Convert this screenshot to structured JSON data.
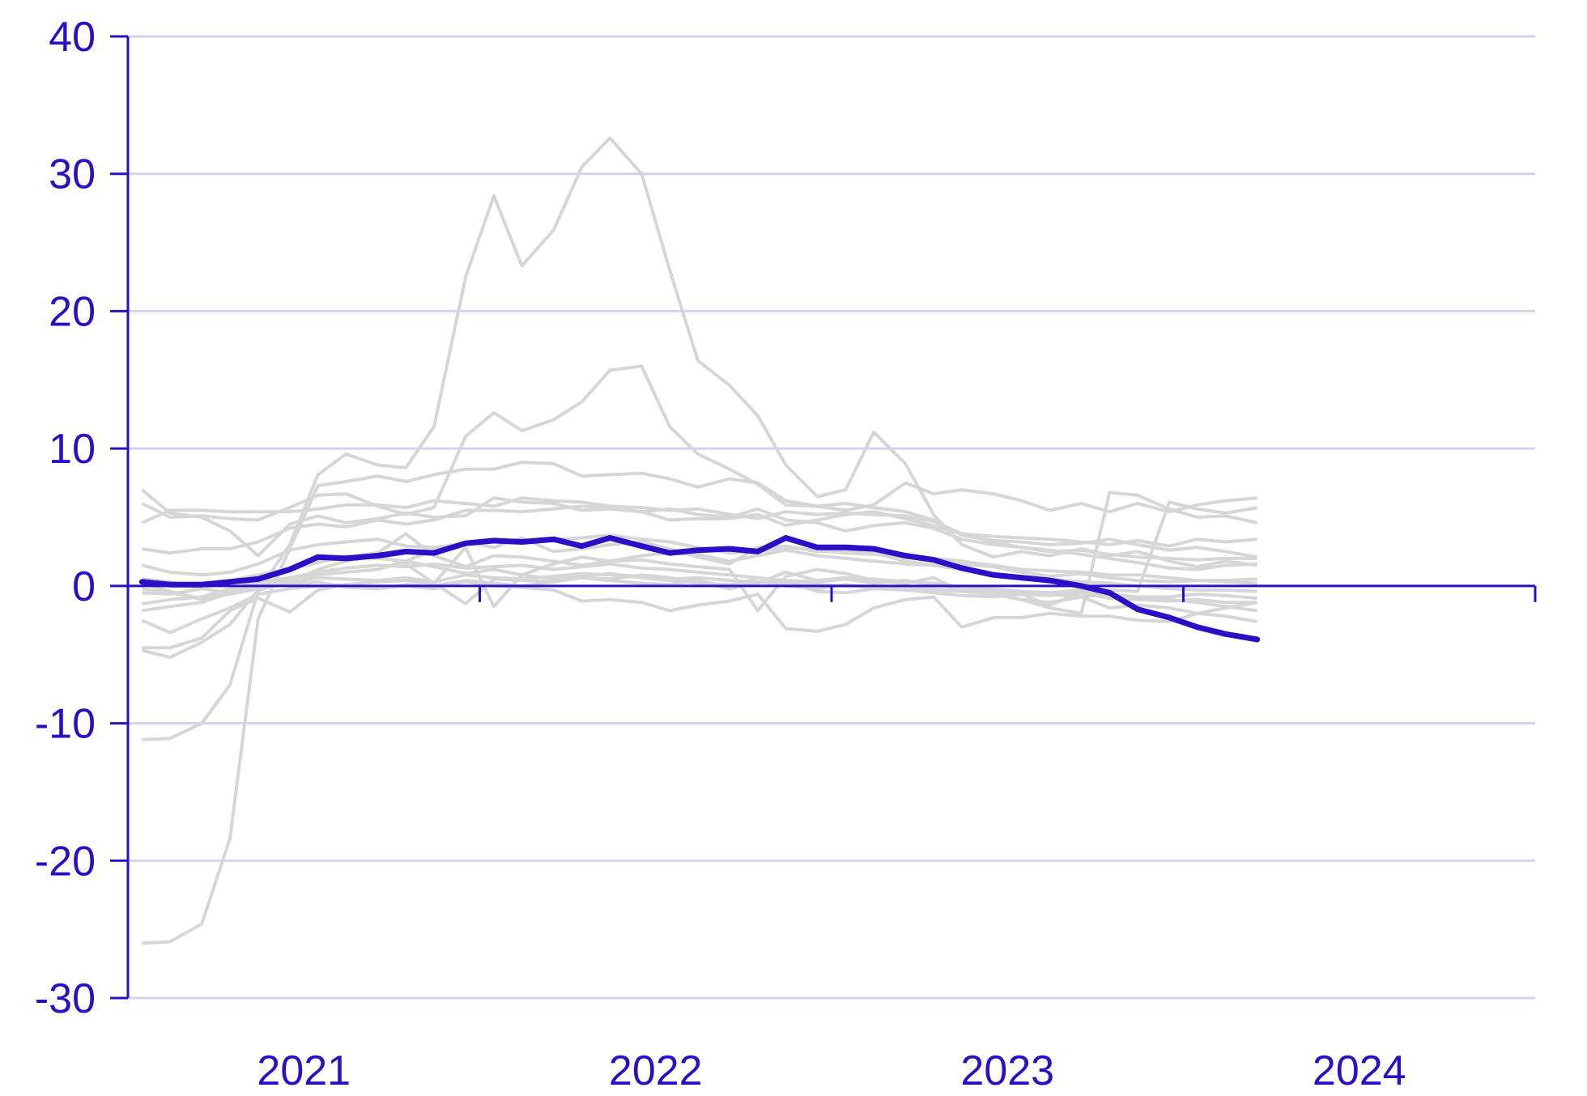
{
  "colors": {
    "accent": "#2a0fc6",
    "grid": "#d3d1ef",
    "background_series": "#d6d6d6"
  },
  "chart_data": {
    "type": "line",
    "title": "",
    "xlabel": "",
    "ylabel": "",
    "ylim": [
      -30,
      40
    ],
    "xlim": [
      2020.5,
      2024.5
    ],
    "grid": "horizontal",
    "y_ticks": [
      40,
      30,
      20,
      10,
      0,
      -10,
      -20,
      -30
    ],
    "y_tick_labels": [
      "40",
      "30",
      "20",
      "10",
      "0",
      "-10",
      "-20",
      "-30"
    ],
    "x_tick_labels": [
      "2021",
      "2022",
      "2023",
      "2024"
    ],
    "x_tick_label_positions": [
      2021.0,
      2022.0,
      2023.0,
      2024.0
    ],
    "x_ticks": [
      2021.5,
      2022.5,
      2023.5,
      2024.5
    ],
    "x": [
      2020.54,
      2020.62,
      2020.71,
      2020.79,
      2020.87,
      2020.96,
      2021.04,
      2021.12,
      2021.21,
      2021.29,
      2021.37,
      2021.46,
      2021.54,
      2021.62,
      2021.71,
      2021.79,
      2021.87,
      2021.96,
      2022.04,
      2022.12,
      2022.21,
      2022.29,
      2022.37,
      2022.46,
      2022.54,
      2022.62,
      2022.71,
      2022.79,
      2022.87,
      2022.96,
      2023.04,
      2023.12,
      2023.21,
      2023.29,
      2023.37,
      2023.46,
      2023.54,
      2023.62,
      2023.71
    ],
    "highlight_series": {
      "values": [
        0.3,
        0.1,
        0.1,
        0.3,
        0.5,
        1.2,
        2.1,
        2.0,
        2.2,
        2.5,
        2.4,
        3.1,
        3.3,
        3.2,
        3.4,
        2.9,
        3.5,
        2.9,
        2.4,
        2.6,
        2.7,
        2.5,
        3.5,
        2.8,
        2.8,
        2.7,
        2.2,
        1.9,
        1.3,
        0.8,
        0.6,
        0.4,
        0.0,
        -0.5,
        -1.7,
        -2.3,
        -3.0,
        -3.5,
        -3.9
      ]
    },
    "background_series": [
      {
        "values": [
          -26.0,
          -25.9,
          -24.6,
          -18.4,
          -2.4,
          2.7,
          7.3,
          7.6,
          8.0,
          7.6,
          8.1,
          8.5,
          8.5,
          9.0,
          8.9,
          8.0,
          8.1,
          8.2,
          7.8,
          7.2,
          7.8,
          7.5,
          6.2,
          5.8,
          6.0,
          5.7,
          5.4,
          4.8,
          3.7,
          3.3,
          3.2,
          3.0,
          3.1,
          3.4,
          3.0,
          2.6,
          2.8,
          2.5,
          2.1
        ]
      },
      {
        "values": [
          -11.2,
          -11.1,
          -10.0,
          -7.2,
          -0.4,
          3.0,
          8.1,
          9.6,
          8.8,
          8.6,
          11.6,
          22.5,
          28.4,
          23.3,
          25.9,
          30.5,
          32.6,
          30.0,
          23.0,
          16.4,
          14.6,
          12.4,
          8.8,
          6.5,
          7.0,
          11.2,
          8.9,
          5.2,
          3.0,
          2.1,
          2.5,
          2.2,
          2.7,
          2.2,
          2.5,
          1.8,
          1.4,
          1.8,
          1.5
        ]
      },
      {
        "values": [
          6.0,
          5.0,
          5.1,
          4.9,
          4.8,
          5.7,
          6.6,
          6.7,
          5.8,
          5.2,
          5.7,
          10.9,
          12.6,
          11.3,
          12.1,
          13.4,
          15.7,
          16.0,
          11.6,
          9.6,
          8.5,
          7.4,
          5.9,
          5.8,
          5.5,
          5.9,
          7.5,
          6.7,
          7.0,
          6.7,
          6.2,
          5.5,
          6.0,
          5.4,
          6.0,
          5.4,
          5.9,
          6.2,
          6.4
        ]
      },
      {
        "values": [
          4.6,
          5.5,
          5.5,
          5.4,
          5.4,
          5.4,
          5.6,
          5.9,
          5.9,
          5.7,
          6.2,
          6.0,
          5.8,
          6.4,
          6.2,
          6.1,
          5.8,
          5.7,
          5.5,
          5.6,
          5.2,
          4.9,
          5.4,
          5.2,
          5.3,
          5.2,
          5.1,
          4.7,
          3.8,
          3.6,
          3.5,
          3.4,
          3.2,
          3.0,
          3.3,
          2.9,
          3.4,
          3.2,
          3.4
        ]
      },
      {
        "values": [
          7.0,
          5.3,
          5.0,
          4.0,
          2.2,
          4.5,
          5.1,
          4.6,
          4.9,
          5.3,
          5.0,
          5.1,
          6.4,
          6.1,
          6.0,
          5.5,
          5.6,
          5.4,
          5.6,
          5.2,
          5.0,
          5.6,
          4.8,
          4.6,
          4.0,
          4.4,
          4.6,
          4.2,
          3.4,
          3.0,
          2.8,
          2.5,
          2.6,
          2.3,
          2.1,
          2.0,
          1.9,
          2.0,
          2.0
        ]
      },
      {
        "values": [
          2.7,
          2.4,
          2.7,
          2.7,
          3.2,
          4.2,
          4.5,
          4.3,
          4.8,
          4.5,
          4.8,
          5.5,
          5.5,
          5.4,
          5.6,
          5.8,
          5.7,
          5.4,
          4.8,
          4.9,
          4.9,
          5.2,
          4.4,
          4.8,
          5.2,
          5.4,
          4.9,
          4.4,
          3.8,
          3.2,
          2.8,
          2.6,
          2.3,
          2.0,
          1.7,
          1.3,
          1.2,
          1.5,
          1.6
        ]
      },
      {
        "values": [
          1.5,
          1.0,
          0.8,
          1.0,
          1.6,
          2.6,
          3.0,
          3.2,
          3.4,
          2.9,
          2.8,
          3.1,
          3.3,
          3.2,
          3.4,
          3.5,
          3.7,
          3.4,
          3.2,
          2.8,
          2.4,
          2.5,
          2.8,
          2.6,
          2.4,
          2.3,
          2.1,
          2.0,
          1.8,
          1.5,
          1.2,
          1.1,
          1.0,
          0.8,
          0.8,
          0.6,
          0.4,
          0.3,
          0.2
        ]
      },
      {
        "values": [
          0.2,
          -0.4,
          -1.0,
          -0.5,
          0.6,
          1.2,
          1.7,
          2.2,
          2.0,
          1.8,
          2.6,
          3.2,
          2.8,
          3.5,
          2.5,
          2.7,
          3.0,
          3.2,
          2.7,
          2.1,
          1.6,
          2.8,
          2.9,
          2.5,
          2.6,
          2.4,
          1.8,
          1.5,
          1.6,
          1.4,
          1.0,
          0.7,
          0.9,
          0.6,
          0.4,
          0.3,
          0.4,
          0.4,
          0.5
        ]
      },
      {
        "values": [
          -0.5,
          -0.6,
          -0.2,
          0.4,
          0.8,
          1.3,
          1.8,
          2.1,
          2.4,
          3.8,
          2.2,
          1.4,
          2.2,
          2.1,
          1.8,
          1.5,
          1.8,
          2.2,
          2.4,
          2.3,
          1.8,
          2.2,
          2.6,
          2.2,
          2.0,
          1.8,
          1.6,
          1.5,
          1.2,
          0.9,
          0.7,
          0.5,
          0.3,
          0.2,
          0.0,
          -0.2,
          -0.3,
          -0.3,
          -0.4
        ]
      },
      {
        "values": [
          -1.3,
          -1.0,
          -0.8,
          -0.2,
          0.3,
          0.6,
          1.0,
          1.3,
          1.5,
          1.4,
          1.6,
          1.3,
          1.4,
          1.5,
          1.2,
          1.4,
          1.6,
          1.3,
          1.2,
          1.0,
          0.8,
          0.6,
          0.4,
          0.3,
          0.5,
          0.2,
          0.4,
          0.1,
          -0.2,
          -0.3,
          -0.4,
          -0.5,
          -0.3,
          -0.6,
          -0.8,
          -0.8,
          -0.6,
          -0.7,
          -0.9
        ]
      },
      {
        "values": [
          -1.8,
          -1.5,
          -1.2,
          -0.5,
          0.0,
          0.5,
          0.8,
          1.0,
          1.2,
          1.8,
          1.4,
          0.9,
          1.2,
          0.8,
          0.5,
          0.7,
          0.9,
          0.6,
          0.4,
          0.2,
          0.1,
          0.3,
          0.0,
          -0.2,
          0.1,
          -0.1,
          0.0,
          -0.2,
          -0.4,
          -0.5,
          -0.6,
          -0.7,
          -0.5,
          -0.9,
          -1.0,
          -1.1,
          -1.0,
          -1.2,
          -1.2
        ]
      },
      {
        "values": [
          -2.5,
          -3.4,
          -2.4,
          -1.6,
          -0.6,
          -0.2,
          0.0,
          0.1,
          0.3,
          0.4,
          0.2,
          -1.3,
          0.5,
          0.4,
          0.3,
          0.6,
          0.5,
          0.8,
          0.6,
          0.3,
          -0.2,
          0.2,
          1.0,
          0.4,
          0.6,
          0.5,
          0.3,
          0.2,
          -0.1,
          -0.2,
          -0.4,
          -0.6,
          -0.8,
          -0.6,
          -0.9,
          -1.0,
          -1.2,
          -1.5,
          -1.8
        ]
      },
      {
        "values": [
          -4.7,
          -5.2,
          -4.1,
          -2.8,
          -0.3,
          0.3,
          1.2,
          1.8,
          2.2,
          1.6,
          0.2,
          2.8,
          -1.5,
          0.8,
          1.6,
          2.1,
          1.8,
          1.9,
          1.6,
          1.4,
          1.2,
          -1.8,
          0.7,
          1.2,
          0.9,
          0.4,
          0.2,
          0.6,
          -0.4,
          -0.6,
          -1.0,
          -1.2,
          -0.8,
          -1.6,
          -1.4,
          -1.6,
          -2.0,
          -2.2,
          -2.6
        ]
      },
      {
        "values": [
          -4.5,
          -4.5,
          -3.8,
          -1.8,
          -0.9,
          -1.9,
          -0.3,
          0.1,
          -0.2,
          0.0,
          -0.2,
          0.3,
          0.0,
          -0.1,
          -0.3,
          -1.1,
          -1.0,
          -1.2,
          -1.8,
          -1.4,
          -1.1,
          -0.6,
          -3.1,
          -3.3,
          -2.8,
          -1.6,
          -1.0,
          -0.8,
          -3.0,
          -2.3,
          -2.3,
          -2.0,
          -2.2,
          -2.2,
          -2.5,
          -2.6,
          -2.0,
          -1.6,
          -1.2
        ]
      },
      {
        "values": [
          0.5,
          0.3,
          -0.2,
          -0.5,
          0.2,
          0.0,
          0.3,
          -0.1,
          -0.2,
          0.1,
          0.0,
          0.4,
          0.2,
          0.0,
          0.3,
          0.6,
          0.4,
          0.2,
          0.1,
          0.4,
          -0.1,
          0.6,
          0.2,
          -0.4,
          -0.5,
          -0.2,
          -0.3,
          -0.5,
          -0.7,
          -0.8,
          -0.6,
          -1.4,
          -0.5,
          -0.3,
          -0.4,
          6.1,
          5.6,
          5.3,
          5.7
        ]
      },
      {
        "values": [
          -0.2,
          -0.5,
          -0.9,
          -0.6,
          -0.2,
          0.2,
          0.6,
          0.5,
          0.4,
          0.6,
          0.3,
          0.8,
          0.6,
          0.5,
          0.7,
          0.9,
          0.8,
          0.7,
          0.5,
          0.6,
          0.4,
          0.3,
          0.2,
          0.1,
          0.0,
          -0.1,
          -0.2,
          -0.3,
          -0.4,
          -0.6,
          -1.0,
          -1.6,
          -2.0,
          6.8,
          6.6,
          5.6,
          5.0,
          5.1,
          4.6
        ]
      }
    ]
  }
}
